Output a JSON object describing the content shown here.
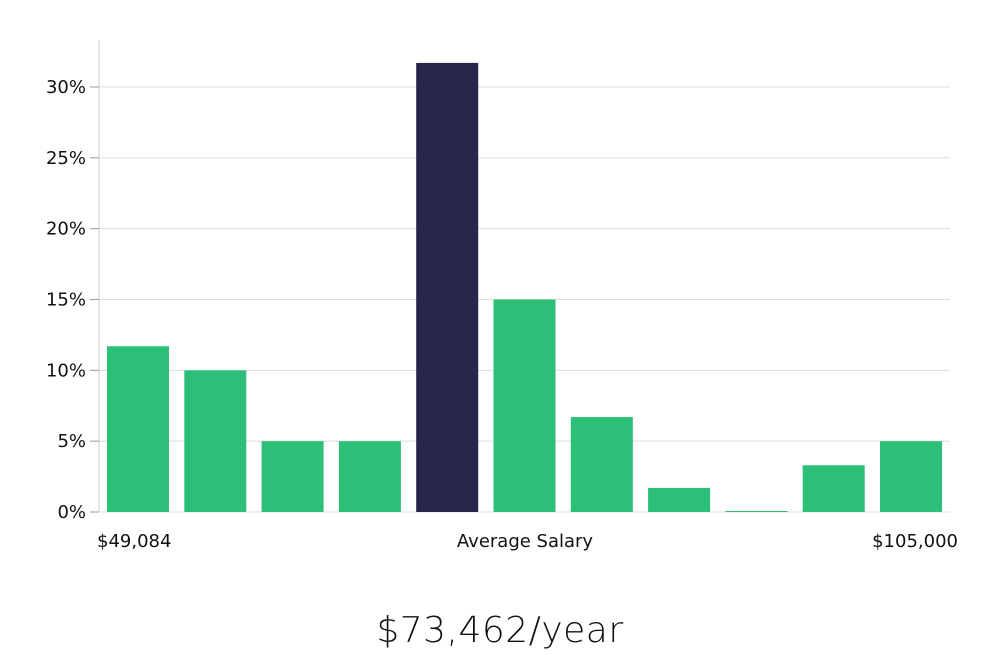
{
  "chart_data": {
    "type": "bar",
    "values": [
      11.7,
      10.0,
      5.0,
      5.0,
      31.7,
      15.0,
      6.7,
      1.7,
      0.05,
      3.3,
      5.0
    ],
    "highlight_index": 4,
    "ylim": [
      0,
      33
    ],
    "yticks": [
      0,
      5,
      10,
      15,
      20,
      25,
      30
    ],
    "ytick_suffix": "%",
    "x_labels": {
      "min": "$49,084",
      "center": "Average Salary",
      "max": "$105,000"
    },
    "colors": {
      "bar": "#2bbf78",
      "highlight": "#28254a",
      "grid": "#dddddd",
      "axis": "#cccccc"
    },
    "grid": true
  },
  "average_salary": "$73,462/year"
}
